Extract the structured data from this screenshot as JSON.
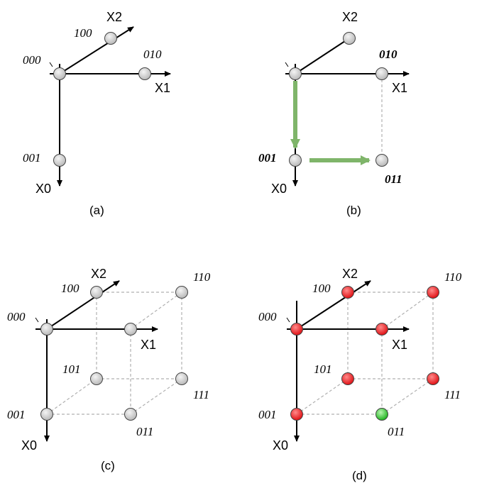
{
  "colors": {
    "node_default": "#cfcfcf",
    "node_red": "#f0282c",
    "node_green": "#3ac43a",
    "path_arrow": "#7fb56a",
    "dashed_edge": "#b0b0b0",
    "axis": "#000000"
  },
  "axes": {
    "x0": "X0",
    "x1": "X1",
    "x2": "X2"
  },
  "panels": [
    {
      "id": "a",
      "caption": "(a)",
      "labels": {
        "000": "000",
        "100": "100",
        "010": "010",
        "001": "001"
      }
    },
    {
      "id": "b",
      "caption": "(b)",
      "labels": {
        "010": "010",
        "001": "001",
        "011": "011"
      }
    },
    {
      "id": "c",
      "caption": "(c)",
      "labels": {
        "000": "000",
        "100": "100",
        "110": "110",
        "101": "101",
        "111": "111",
        "001": "001",
        "011": "011"
      }
    },
    {
      "id": "d",
      "caption": "(d)",
      "labels": {
        "000": "000",
        "100": "100",
        "110": "110",
        "101": "101",
        "111": "111",
        "001": "001",
        "011": "011"
      }
    }
  ]
}
